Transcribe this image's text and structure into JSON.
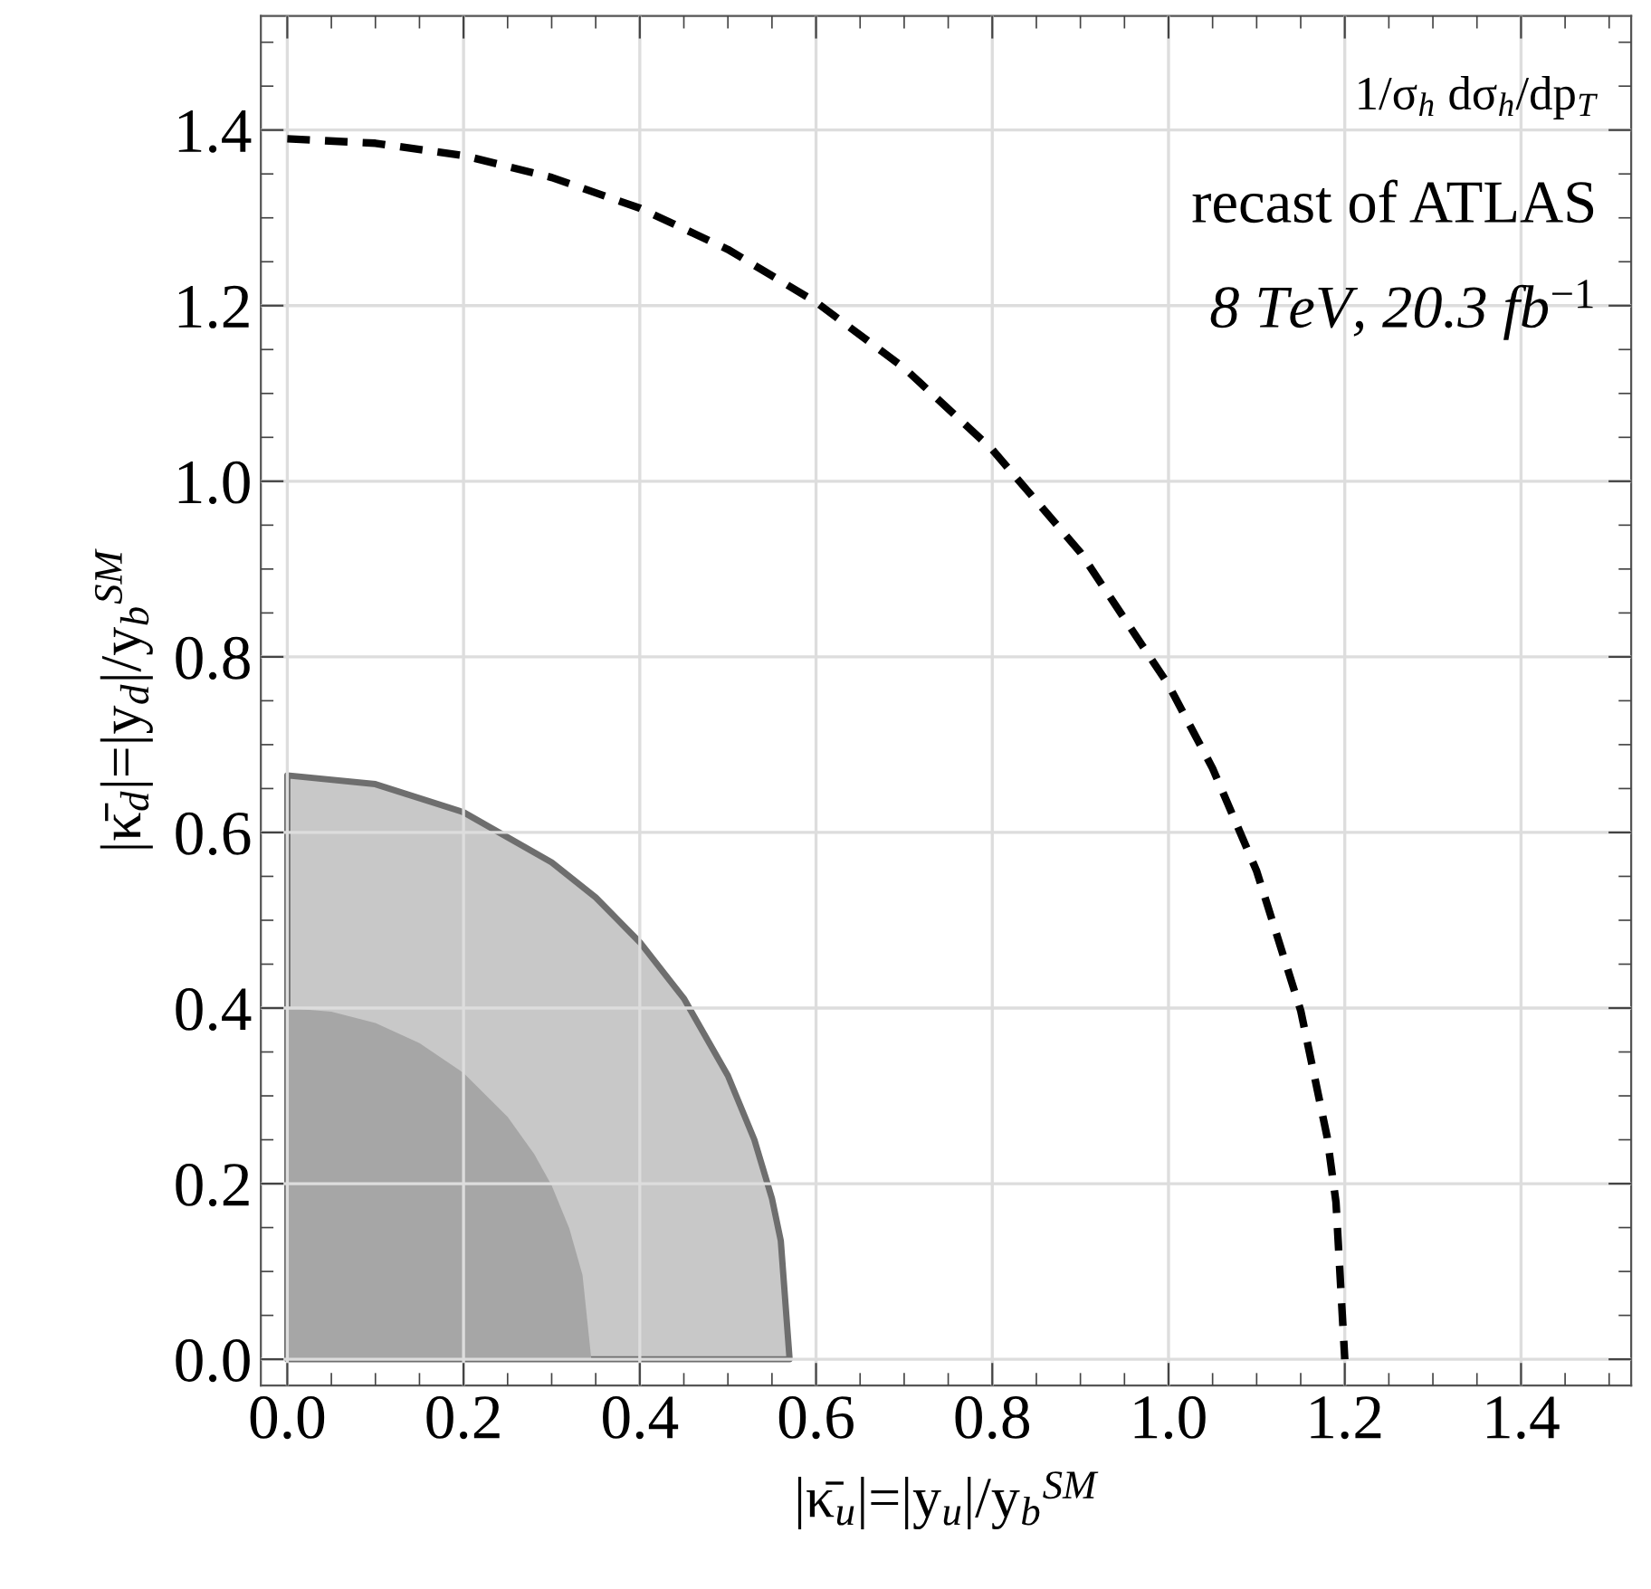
{
  "chart_data": {
    "type": "area",
    "xlabel": "|κ̄$_{u}$|=|y$_{u}$|/y$_{b}$$^{SM}$",
    "ylabel": "|κ̄$_{d}$|=|y$_{d}$|/y$_{b}$$^{SM}$",
    "xlim": [
      -0.03,
      1.525
    ],
    "ylim": [
      -0.03,
      1.53
    ],
    "xticks": [
      {
        "value": 0,
        "label": "0.0"
      },
      0.2,
      0.4,
      0.6,
      0.8,
      {
        "value": 1,
        "label": "1.0"
      },
      1.2,
      1.4
    ],
    "yticks": [
      {
        "value": 0,
        "label": "0.0"
      },
      0.2,
      0.4,
      0.6,
      0.8,
      {
        "value": 1,
        "label": "1.0"
      },
      1.2,
      1.4
    ],
    "grid": true,
    "annotations": [
      "1/σ$_{h}$ dσ$_{h}$/dp$_{T}$",
      "recast of ATLAS",
      "8 TeV, 20.3 fb$^{−1}$"
    ],
    "series": [
      {
        "color": "#c8c8c8",
        "line_style": "solid",
        "x": [
          0,
          0.1,
          0.2,
          0.3,
          0.35,
          0.4,
          0.45,
          0.5,
          0.53,
          0.55,
          0.56,
          0.57
        ],
        "values": [
          0.665,
          0.655,
          0.623,
          0.566,
          0.526,
          0.475,
          0.411,
          0.323,
          0.25,
          0.183,
          0.135,
          0
        ]
      },
      {
        "color": "#a6a6a6",
        "x": [
          0,
          0.05,
          0.1,
          0.15,
          0.2,
          0.25,
          0.28,
          0.3,
          0.32,
          0.335,
          0.345
        ],
        "values": [
          0.4,
          0.396,
          0.383,
          0.36,
          0.326,
          0.276,
          0.234,
          0.198,
          0.149,
          0.096,
          0
        ]
      },
      {
        "type": "line",
        "color": "#000000",
        "line_style": "dashed",
        "x": [
          0,
          0.1,
          0.2,
          0.3,
          0.4,
          0.5,
          0.6,
          0.7,
          0.8,
          0.9,
          1.0,
          1.05,
          1.1,
          1.15,
          1.18,
          1.19,
          1.2
        ],
        "values": [
          1.39,
          1.385,
          1.371,
          1.346,
          1.311,
          1.264,
          1.204,
          1.129,
          1.036,
          0.919,
          0.768,
          0.673,
          0.556,
          0.397,
          0.253,
          0.179,
          0
        ]
      }
    ]
  }
}
